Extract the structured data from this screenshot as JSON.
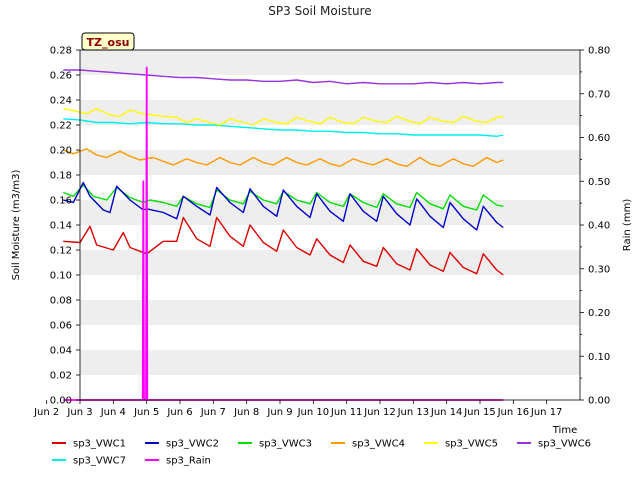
{
  "chart_data": {
    "type": "line",
    "title": "SP3 Soil Moisture",
    "xlabel": "Time",
    "ylabel": "Soil Moisture (m3/m3)",
    "y2label": "Rain (mm)",
    "tag": "TZ_osu",
    "xlim": [
      1.0,
      16.0
    ],
    "ylim": [
      0.0,
      0.28
    ],
    "y2lim": [
      0.0,
      0.8
    ],
    "x_ticks": [
      {
        "value": 0,
        "label": "Jun 2"
      },
      {
        "value": 1,
        "label": "Jun 3"
      },
      {
        "value": 2,
        "label": "Jun 4"
      },
      {
        "value": 3,
        "label": "Jun 5"
      },
      {
        "value": 4,
        "label": "Jun 6"
      },
      {
        "value": 5,
        "label": "Jun 7"
      },
      {
        "value": 6,
        "label": "Jun 8"
      },
      {
        "value": 7,
        "label": "Jun 9"
      },
      {
        "value": 8,
        "label": "Jun 10"
      },
      {
        "value": 9,
        "label": "Jun 11"
      },
      {
        "value": 10,
        "label": "Jun 12"
      },
      {
        "value": 11,
        "label": "Jun 13"
      },
      {
        "value": 12,
        "label": "Jun 14"
      },
      {
        "value": 13,
        "label": "Jun 15"
      },
      {
        "value": 14,
        "label": "Jun 16"
      },
      {
        "value": 15,
        "label": "Jun 17"
      }
    ],
    "y_ticks": [
      "0.00",
      "0.02",
      "0.04",
      "0.06",
      "0.08",
      "0.10",
      "0.12",
      "0.14",
      "0.16",
      "0.18",
      "0.20",
      "0.22",
      "0.24",
      "0.26",
      "0.28"
    ],
    "y2_ticks": [
      "0.00",
      "0.10",
      "0.20",
      "0.30",
      "0.40",
      "0.50",
      "0.60",
      "0.70",
      "0.80"
    ],
    "grid_bands": true,
    "legend_position": "bottom",
    "series": [
      {
        "name": "sp3_VWC1",
        "color": "#dd0000",
        "axis": "left",
        "x": [
          0.5,
          1.0,
          1.3,
          1.5,
          2.0,
          2.3,
          2.5,
          3.0,
          3.5,
          3.9,
          4.1,
          4.5,
          4.9,
          5.1,
          5.5,
          5.9,
          6.1,
          6.5,
          6.9,
          7.1,
          7.5,
          7.9,
          8.1,
          8.5,
          8.9,
          9.1,
          9.5,
          9.9,
          10.1,
          10.5,
          10.9,
          11.1,
          11.5,
          11.9,
          12.1,
          12.5,
          12.9,
          13.1,
          13.5,
          13.7
        ],
        "y": [
          0.127,
          0.126,
          0.139,
          0.124,
          0.12,
          0.134,
          0.122,
          0.117,
          0.127,
          0.127,
          0.146,
          0.129,
          0.123,
          0.146,
          0.131,
          0.123,
          0.14,
          0.126,
          0.119,
          0.136,
          0.122,
          0.116,
          0.129,
          0.116,
          0.11,
          0.124,
          0.111,
          0.107,
          0.122,
          0.109,
          0.104,
          0.121,
          0.108,
          0.103,
          0.118,
          0.106,
          0.101,
          0.117,
          0.104,
          0.1
        ]
      },
      {
        "name": "sp3_VWC2",
        "color": "#0000cc",
        "axis": "left",
        "x": [
          0.5,
          0.8,
          1.1,
          1.3,
          1.7,
          1.9,
          2.1,
          2.5,
          2.9,
          3.0,
          3.5,
          3.9,
          4.1,
          4.5,
          4.9,
          5.1,
          5.5,
          5.9,
          6.1,
          6.5,
          6.9,
          7.1,
          7.5,
          7.9,
          8.1,
          8.5,
          8.9,
          9.1,
          9.5,
          9.9,
          10.1,
          10.5,
          10.9,
          11.1,
          11.5,
          11.9,
          12.1,
          12.5,
          12.9,
          13.1,
          13.5,
          13.7
        ],
        "y": [
          0.16,
          0.158,
          0.174,
          0.163,
          0.152,
          0.15,
          0.171,
          0.16,
          0.152,
          0.153,
          0.15,
          0.145,
          0.163,
          0.155,
          0.148,
          0.17,
          0.158,
          0.15,
          0.169,
          0.155,
          0.147,
          0.168,
          0.155,
          0.146,
          0.165,
          0.151,
          0.143,
          0.165,
          0.151,
          0.143,
          0.163,
          0.149,
          0.14,
          0.161,
          0.147,
          0.138,
          0.158,
          0.145,
          0.136,
          0.155,
          0.142,
          0.138
        ]
      },
      {
        "name": "sp3_VWC3",
        "color": "#00dd00",
        "axis": "left",
        "x": [
          0.5,
          0.8,
          1.1,
          1.4,
          1.8,
          2.1,
          2.5,
          2.9,
          3.1,
          3.5,
          3.9,
          4.1,
          4.5,
          4.9,
          5.1,
          5.5,
          5.9,
          6.1,
          6.5,
          6.9,
          7.1,
          7.5,
          7.9,
          8.1,
          8.5,
          8.9,
          9.1,
          9.5,
          9.9,
          10.1,
          10.5,
          10.9,
          11.1,
          11.5,
          11.9,
          12.1,
          12.5,
          12.9,
          13.1,
          13.5,
          13.7
        ],
        "y": [
          0.166,
          0.163,
          0.172,
          0.163,
          0.16,
          0.17,
          0.162,
          0.158,
          0.16,
          0.158,
          0.155,
          0.163,
          0.157,
          0.154,
          0.168,
          0.16,
          0.157,
          0.167,
          0.16,
          0.157,
          0.167,
          0.16,
          0.157,
          0.166,
          0.158,
          0.155,
          0.165,
          0.158,
          0.154,
          0.165,
          0.157,
          0.154,
          0.166,
          0.157,
          0.153,
          0.164,
          0.155,
          0.152,
          0.164,
          0.156,
          0.155
        ]
      },
      {
        "name": "sp3_VWC4",
        "color": "#ff9900",
        "axis": "left",
        "x": [
          0.5,
          0.8,
          1.2,
          1.5,
          1.8,
          2.2,
          2.5,
          2.8,
          3.2,
          3.5,
          3.8,
          4.2,
          4.5,
          4.8,
          5.2,
          5.5,
          5.8,
          6.2,
          6.5,
          6.8,
          7.2,
          7.5,
          7.8,
          8.2,
          8.5,
          8.8,
          9.2,
          9.5,
          9.8,
          10.2,
          10.5,
          10.8,
          11.2,
          11.5,
          11.8,
          12.2,
          12.5,
          12.8,
          13.2,
          13.5,
          13.7
        ],
        "y": [
          0.2,
          0.197,
          0.201,
          0.196,
          0.194,
          0.199,
          0.195,
          0.192,
          0.194,
          0.191,
          0.188,
          0.193,
          0.19,
          0.188,
          0.194,
          0.19,
          0.188,
          0.194,
          0.19,
          0.188,
          0.194,
          0.19,
          0.188,
          0.193,
          0.189,
          0.187,
          0.193,
          0.19,
          0.188,
          0.193,
          0.189,
          0.187,
          0.194,
          0.189,
          0.187,
          0.193,
          0.189,
          0.187,
          0.194,
          0.19,
          0.192
        ]
      },
      {
        "name": "sp3_VWC5",
        "color": "#ffff00",
        "axis": "left",
        "x": [
          0.5,
          0.9,
          1.2,
          1.5,
          1.9,
          2.2,
          2.5,
          2.9,
          3.2,
          3.5,
          3.9,
          4.2,
          4.5,
          4.9,
          5.2,
          5.5,
          5.9,
          6.2,
          6.5,
          6.9,
          7.2,
          7.5,
          7.9,
          8.2,
          8.5,
          8.9,
          9.2,
          9.5,
          9.9,
          10.2,
          10.5,
          10.9,
          11.2,
          11.5,
          11.9,
          12.2,
          12.5,
          12.9,
          13.2,
          13.5,
          13.7
        ],
        "y": [
          0.233,
          0.231,
          0.229,
          0.233,
          0.228,
          0.227,
          0.232,
          0.229,
          0.228,
          0.227,
          0.226,
          0.222,
          0.225,
          0.222,
          0.22,
          0.225,
          0.222,
          0.22,
          0.225,
          0.222,
          0.221,
          0.226,
          0.223,
          0.221,
          0.226,
          0.222,
          0.221,
          0.226,
          0.223,
          0.222,
          0.227,
          0.223,
          0.221,
          0.226,
          0.223,
          0.222,
          0.227,
          0.223,
          0.222,
          0.226,
          0.227
        ]
      },
      {
        "name": "sp3_VWC6",
        "color": "#9933dd",
        "axis": "left",
        "x": [
          0.5,
          1.0,
          1.5,
          2.0,
          2.5,
          3.0,
          3.5,
          4.0,
          4.5,
          5.0,
          5.5,
          6.0,
          6.5,
          7.0,
          7.5,
          8.0,
          8.5,
          9.0,
          9.5,
          10.0,
          10.5,
          11.0,
          11.5,
          12.0,
          12.5,
          13.0,
          13.5,
          13.7
        ],
        "y": [
          0.264,
          0.264,
          0.263,
          0.262,
          0.261,
          0.26,
          0.259,
          0.258,
          0.258,
          0.257,
          0.256,
          0.256,
          0.255,
          0.255,
          0.256,
          0.254,
          0.255,
          0.253,
          0.254,
          0.253,
          0.253,
          0.253,
          0.254,
          0.253,
          0.254,
          0.253,
          0.254,
          0.254
        ]
      },
      {
        "name": "sp3_VWC7",
        "color": "#00eeee",
        "axis": "left",
        "x": [
          0.5,
          1.0,
          1.5,
          2.0,
          2.5,
          3.0,
          3.5,
          4.0,
          4.5,
          5.0,
          5.5,
          6.0,
          6.5,
          7.0,
          7.5,
          8.0,
          8.5,
          9.0,
          9.5,
          10.0,
          10.5,
          11.0,
          11.5,
          12.0,
          12.5,
          13.0,
          13.5,
          13.7
        ],
        "y": [
          0.225,
          0.224,
          0.222,
          0.222,
          0.221,
          0.222,
          0.221,
          0.221,
          0.22,
          0.22,
          0.219,
          0.218,
          0.217,
          0.216,
          0.216,
          0.215,
          0.215,
          0.214,
          0.214,
          0.213,
          0.213,
          0.212,
          0.212,
          0.212,
          0.212,
          0.212,
          0.211,
          0.212
        ]
      },
      {
        "name": "sp3_Rain",
        "color": "#ff00ff",
        "axis": "right",
        "x": [
          0.5,
          2.88,
          2.9,
          2.92,
          2.94,
          2.96,
          2.98,
          3.0,
          3.02,
          3.04,
          3.06,
          13.7
        ],
        "y": [
          0.0,
          0.0,
          0.5,
          0.0,
          0.0,
          0.0,
          0.0,
          0.76,
          0.0,
          0.0,
          0.0,
          0.0
        ]
      }
    ]
  }
}
